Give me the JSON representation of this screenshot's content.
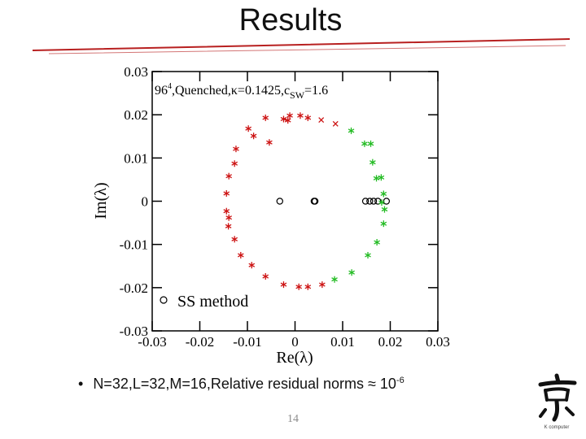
{
  "slide": {
    "title": "Results",
    "bullet_text": "N=32,L=32,M=16,Relative residual norms ≈ 10",
    "bullet_exponent": "-6",
    "page_number": "14",
    "logo_icon": "kanji-kei-logo",
    "logo_caption": "K computer"
  },
  "chart_data": {
    "type": "scatter",
    "annotation": {
      "lattice": "96",
      "lattice_exp": "4",
      "text": ",Quenched,κ=0.1425,c",
      "sub": "SW",
      "tail": "=1.6"
    },
    "xlabel": "Re(λ)",
    "ylabel": "Im(λ)",
    "xlim": [
      -0.03,
      0.03
    ],
    "ylim": [
      -0.03,
      0.03
    ],
    "x_ticks": [
      "-0.03",
      "-0.02",
      "-0.01",
      "0",
      "0.01",
      "0.02",
      "0.03"
    ],
    "y_ticks": [
      "0.03",
      "0.02",
      "0.01",
      "0",
      "-0.01",
      "-0.02",
      "-0.03"
    ],
    "grid": false,
    "legend_position": "bottom-left",
    "colors": {
      "red": "#cc1111",
      "green": "#22bb22",
      "black": "#000000"
    },
    "series": [
      {
        "name": "SS method",
        "marker": "circle",
        "color": "#000000",
        "points": [
          [
            -0.0032,
            0.0
          ],
          [
            0.004,
            0.0
          ],
          [
            0.0042,
            0.0
          ],
          [
            0.0148,
            0.0
          ],
          [
            0.0157,
            0.0
          ],
          [
            0.0165,
            0.0
          ],
          [
            0.0174,
            0.0
          ],
          [
            0.0192,
            0.0
          ]
        ]
      },
      {
        "marker": "asterisk",
        "color": "#cc1111",
        "points": [
          [
            -0.0098,
            0.0168
          ],
          [
            -0.0062,
            0.0193
          ],
          [
            -0.0011,
            0.0198
          ],
          [
            0.0011,
            0.0198
          ],
          [
            0.0027,
            0.0193
          ],
          [
            -0.0087,
            0.0151
          ],
          [
            -0.0015,
            0.0187
          ],
          [
            -0.0024,
            0.019
          ],
          [
            -0.0054,
            0.0136
          ],
          [
            -0.0124,
            0.0121
          ],
          [
            -0.0127,
            0.0087
          ],
          [
            -0.0139,
            0.0058
          ],
          [
            -0.0144,
            0.0018
          ],
          [
            -0.0144,
            -0.0023
          ],
          [
            -0.014,
            -0.0058
          ],
          [
            -0.0127,
            -0.0088
          ],
          [
            -0.0114,
            -0.0125
          ],
          [
            -0.0091,
            -0.0148
          ],
          [
            -0.0062,
            -0.0174
          ],
          [
            -0.0024,
            -0.0193
          ],
          [
            0.0008,
            -0.0198
          ],
          [
            0.0027,
            -0.0198
          ],
          [
            0.0057,
            -0.0193
          ],
          [
            -0.0139,
            -0.0038
          ]
        ]
      },
      {
        "marker": "x",
        "color": "#cc1111",
        "points": [
          [
            0.0055,
            0.0188
          ],
          [
            0.0085,
            0.0179
          ]
        ]
      },
      {
        "marker": "asterisk",
        "color": "#22bb22",
        "points": [
          [
            0.0118,
            0.0163
          ],
          [
            0.0146,
            0.0133
          ],
          [
            0.0163,
            0.009
          ],
          [
            0.0181,
            0.0055
          ],
          [
            0.0186,
            0.0017
          ],
          [
            0.0188,
            -0.0019
          ],
          [
            0.0186,
            -0.0052
          ],
          [
            0.0172,
            -0.0095
          ],
          [
            0.0153,
            -0.0125
          ],
          [
            0.0119,
            -0.0165
          ],
          [
            0.0083,
            -0.0181
          ],
          [
            0.0159,
            0.0133
          ],
          [
            0.0171,
            0.0053
          ],
          [
            0.0182,
            -0.0003
          ]
        ]
      }
    ]
  }
}
